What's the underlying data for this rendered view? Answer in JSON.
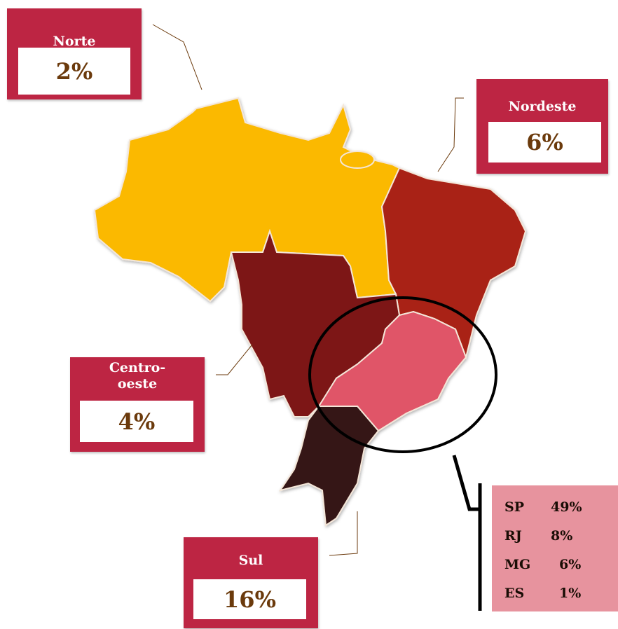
{
  "regions": [
    {
      "name": "Norte",
      "value": "2%"
    },
    {
      "name": "Nordeste",
      "value": "6%"
    },
    {
      "name": "Centro-oeste",
      "value": "4%"
    },
    {
      "name": "Sul",
      "value": "16%"
    }
  ],
  "sudeste": [
    {
      "state": "SP",
      "value": "49%"
    },
    {
      "state": "RJ",
      "value": "8%"
    },
    {
      "state": "MG",
      "value": "6%"
    },
    {
      "state": "ES",
      "value": "1%"
    }
  ]
}
